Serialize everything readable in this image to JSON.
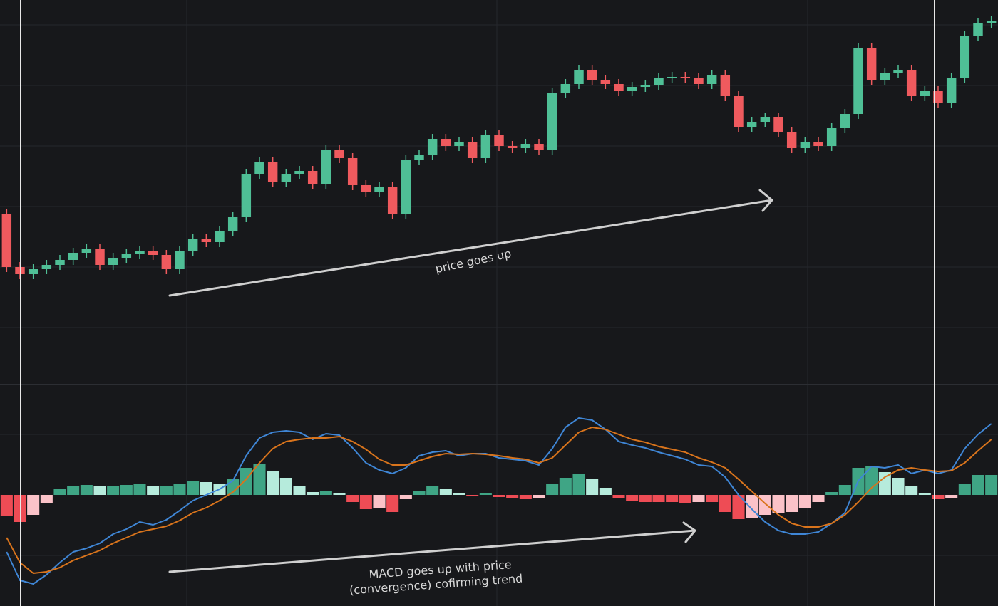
{
  "chart_data": [
    {
      "type": "candlestick",
      "up_color": "#4fbf96",
      "down_color": "#ef5a5e",
      "ylim": [
        0,
        540
      ],
      "annotation": "price goes up",
      "open": [
        240,
        165,
        155,
        162,
        168,
        175,
        185,
        190,
        168,
        178,
        183,
        187,
        182,
        162,
        188,
        205,
        200,
        215,
        235,
        295,
        312,
        285,
        295,
        300,
        282,
        330,
        318,
        280,
        270,
        278,
        240,
        315,
        322,
        345,
        335,
        340,
        318,
        350,
        335,
        332,
        338,
        330,
        410,
        422,
        442,
        428,
        422,
        412,
        418,
        420,
        430,
        432,
        430,
        422,
        435,
        405,
        362,
        368,
        375,
        355,
        332,
        340,
        335,
        360,
        380,
        472,
        428,
        438,
        442,
        405,
        412,
        395,
        430,
        490,
        508
      ],
      "high": [
        247,
        172,
        169,
        175,
        182,
        192,
        197,
        197,
        185,
        190,
        194,
        194,
        189,
        195,
        212,
        212,
        222,
        242,
        302,
        319,
        319,
        302,
        307,
        307,
        337,
        337,
        325,
        287,
        285,
        285,
        322,
        329,
        352,
        352,
        347,
        347,
        357,
        357,
        342,
        345,
        345,
        417,
        429,
        449,
        449,
        435,
        429,
        425,
        427,
        437,
        439,
        439,
        437,
        442,
        442,
        412,
        375,
        382,
        382,
        362,
        347,
        347,
        367,
        387,
        479,
        479,
        445,
        449,
        449,
        419,
        419,
        437,
        497,
        515,
        517
      ],
      "low": [
        158,
        148,
        148,
        155,
        161,
        168,
        178,
        161,
        161,
        171,
        176,
        175,
        155,
        155,
        181,
        193,
        193,
        208,
        228,
        288,
        278,
        278,
        288,
        275,
        275,
        311,
        273,
        263,
        263,
        233,
        233,
        308,
        315,
        328,
        328,
        311,
        311,
        328,
        325,
        325,
        323,
        323,
        403,
        415,
        421,
        415,
        405,
        405,
        411,
        413,
        423,
        423,
        415,
        415,
        398,
        355,
        355,
        361,
        348,
        325,
        325,
        328,
        328,
        353,
        373,
        421,
        421,
        431,
        398,
        398,
        388,
        388,
        423,
        483,
        501
      ],
      "close": [
        165,
        155,
        162,
        168,
        175,
        185,
        190,
        168,
        178,
        183,
        187,
        182,
        162,
        188,
        205,
        200,
        215,
        235,
        295,
        312,
        285,
        295,
        300,
        282,
        330,
        318,
        280,
        270,
        278,
        240,
        315,
        322,
        345,
        335,
        340,
        318,
        350,
        335,
        332,
        338,
        330,
        410,
        422,
        442,
        428,
        422,
        412,
        418,
        420,
        430,
        432,
        430,
        422,
        435,
        405,
        362,
        368,
        375,
        355,
        332,
        340,
        335,
        360,
        380,
        472,
        428,
        438,
        442,
        405,
        412,
        395,
        430,
        490,
        508,
        510
      ]
    },
    {
      "type": "macd",
      "ylim": [
        -156,
        155
      ],
      "annotation": [
        "MACD goes up with price",
        "(convergence) cofirming trend"
      ],
      "histogram": {
        "up_strong": "#3fa585",
        "up_weak": "#b6ebdc",
        "down_strong": "#ee4c55",
        "down_weak": "#fbc2c8",
        "values": [
          -30,
          -38,
          -28,
          -12,
          8,
          12,
          14,
          12,
          12,
          14,
          16,
          12,
          12,
          16,
          20,
          18,
          16,
          22,
          38,
          44,
          34,
          24,
          12,
          4,
          6,
          2,
          -10,
          -20,
          -18,
          -24,
          -6,
          6,
          12,
          8,
          2,
          -2,
          3,
          -3,
          -4,
          -6,
          -4,
          16,
          24,
          30,
          22,
          10,
          -4,
          -8,
          -10,
          -10,
          -10,
          -12,
          -10,
          -10,
          -24,
          -34,
          -32,
          -28,
          -26,
          -24,
          -18,
          -10,
          4,
          14,
          38,
          40,
          32,
          24,
          12,
          2,
          -6,
          -4,
          16,
          28,
          28
        ]
      },
      "series": [
        {
          "color": "#3f86d6",
          "values": [
            -80,
            -120,
            -125,
            -112,
            -95,
            -80,
            -75,
            -68,
            -55,
            -48,
            -38,
            -42,
            -35,
            -22,
            -8,
            0,
            8,
            20,
            55,
            80,
            88,
            90,
            88,
            78,
            86,
            84,
            66,
            45,
            35,
            30,
            38,
            55,
            60,
            62,
            55,
            58,
            58,
            52,
            50,
            48,
            42,
            65,
            95,
            108,
            105,
            92,
            75,
            70,
            66,
            60,
            55,
            50,
            42,
            40,
            25,
            0,
            -20,
            -38,
            -50,
            -55,
            -55,
            -52,
            -40,
            -25,
            20,
            40,
            38,
            42,
            30,
            35,
            30,
            35,
            65,
            85,
            100
          ]
        },
        {
          "color": "#d9741c",
          "values": [
            -60,
            -95,
            -110,
            -108,
            -102,
            -92,
            -85,
            -78,
            -68,
            -60,
            -52,
            -48,
            -44,
            -36,
            -25,
            -18,
            -8,
            4,
            22,
            45,
            65,
            75,
            78,
            80,
            80,
            82,
            75,
            64,
            50,
            42,
            42,
            48,
            54,
            58,
            57,
            58,
            57,
            55,
            52,
            50,
            45,
            52,
            70,
            88,
            95,
            92,
            85,
            78,
            74,
            68,
            64,
            60,
            52,
            46,
            38,
            22,
            5,
            -12,
            -28,
            -40,
            -45,
            -45,
            -40,
            -28,
            -10,
            10,
            25,
            35,
            38,
            35,
            33,
            34,
            45,
            62,
            78
          ]
        }
      ]
    }
  ]
}
